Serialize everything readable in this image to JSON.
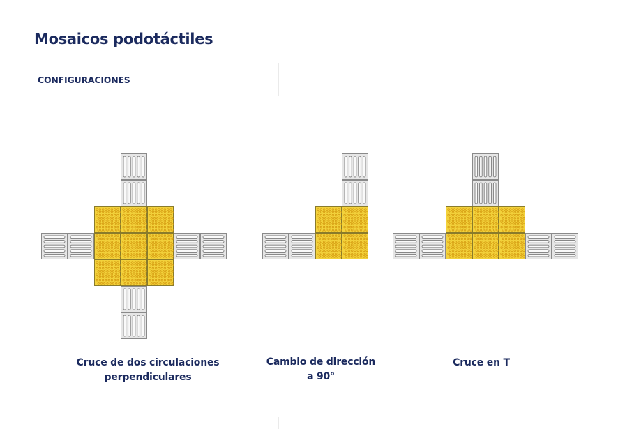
{
  "page": {
    "title": "Mosaicos podotáctiles",
    "subtitle": "CONFIGURACIONES"
  },
  "colors": {
    "title_text": "#1b2a5e",
    "guide_tile_fill": "#e6e6e6",
    "guide_tile_stroke": "#8a8a8a",
    "warning_tile_fill": "#f3d23c",
    "warning_tile_stroke": "#8a7b2b",
    "warning_dot": "#d49a10"
  },
  "configurations": [
    {
      "id": "cross",
      "caption_lines": [
        "Cruce de  dos circulaciones",
        "perpendiculares"
      ],
      "warning_tiles": "3x3",
      "guide_arms": [
        "top",
        "bottom",
        "left",
        "right"
      ]
    },
    {
      "id": "turn",
      "caption_lines": [
        "Cambio de dirección",
        "a 90°"
      ],
      "warning_tiles": "2x2",
      "guide_arms": [
        "top",
        "left"
      ]
    },
    {
      "id": "tee",
      "caption_lines": [
        "Cruce en T"
      ],
      "warning_tiles": "3x2",
      "guide_arms": [
        "top",
        "left",
        "right"
      ]
    }
  ]
}
